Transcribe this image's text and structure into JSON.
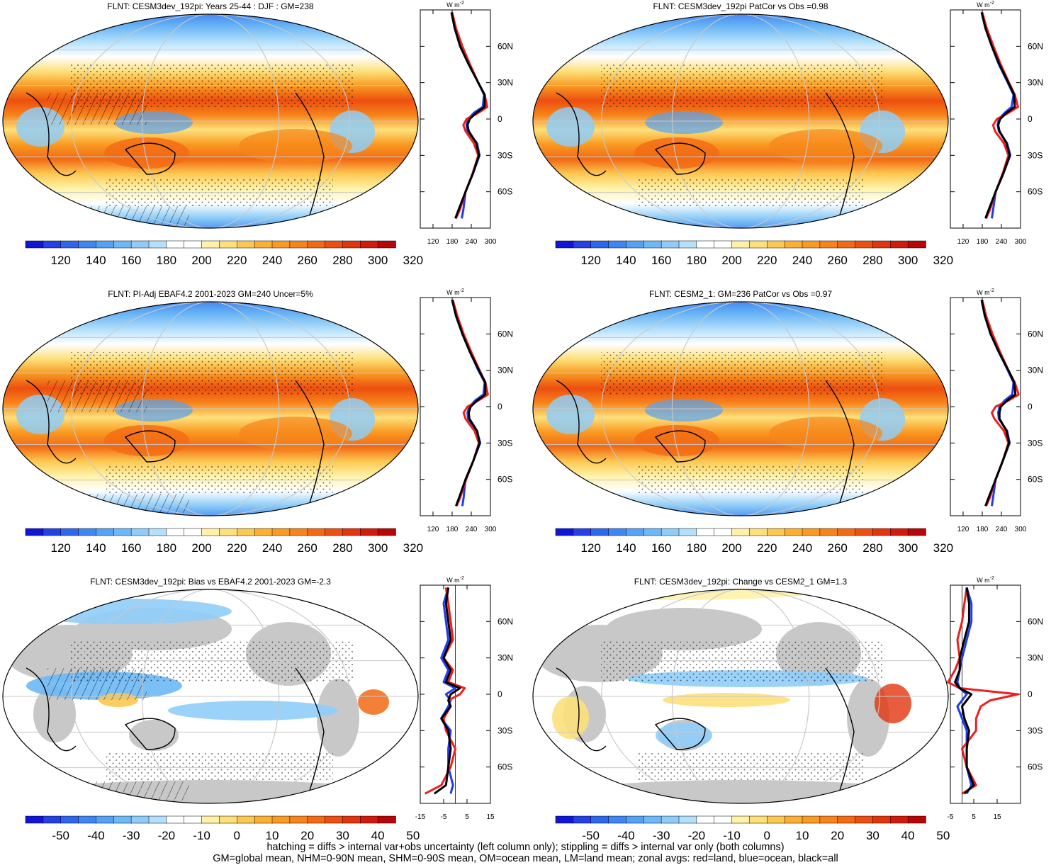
{
  "colors": {
    "ocean_blue": "#1f3cf0",
    "land_red": "#f01e1e",
    "all_black": "#000000",
    "map_gray": "#c8c8c8",
    "palette_abs": [
      "#1016d8",
      "#2441e6",
      "#2f66ee",
      "#3e86f2",
      "#55a1f4",
      "#6db8f6",
      "#8fcdf8",
      "#b4e0fb",
      "#ffffff",
      "#ffffff",
      "#fff2a8",
      "#fde07a",
      "#fcc851",
      "#fbb033",
      "#f99a22",
      "#f7841a",
      "#f26a14",
      "#ec4f10",
      "#e2340d",
      "#d21a0a",
      "#b80606"
    ],
    "palette_diff": [
      "#1016d8",
      "#2441e6",
      "#2f66ee",
      "#3e86f2",
      "#55a1f4",
      "#6db8f6",
      "#8fcdf8",
      "#b4e0fb",
      "#ffffff",
      "#ffffff",
      "#fff2a8",
      "#fde07a",
      "#fcc851",
      "#fbb033",
      "#f99a22",
      "#f7841a",
      "#f26a14",
      "#ec4f10",
      "#e2340d",
      "#d21a0a",
      "#b80606"
    ]
  },
  "panels": [
    {
      "title": "FLNT: CESM3dev_192pi: Years 25-44 : DJF : GM=238",
      "colorbar_labels": [
        "120",
        "140",
        "160",
        "180",
        "200",
        "220",
        "240",
        "260",
        "280",
        "300",
        "320"
      ],
      "field": "abs",
      "hatching": true
    },
    {
      "title": "FLNT: CESM3dev_192pi PatCor vs Obs =0.98",
      "colorbar_labels": [
        "120",
        "140",
        "160",
        "180",
        "200",
        "220",
        "240",
        "260",
        "280",
        "300",
        "320"
      ],
      "field": "abs",
      "hatching": false
    },
    {
      "title": "FLNT: PI-Adj EBAF4.2 2001-2023 GM=240 Uncer=5%",
      "colorbar_labels": [
        "120",
        "140",
        "160",
        "180",
        "200",
        "220",
        "240",
        "260",
        "280",
        "300",
        "320"
      ],
      "field": "abs",
      "hatching": true
    },
    {
      "title": "FLNT: CESM2_1: GM=236 PatCor vs Obs =0.97",
      "colorbar_labels": [
        "120",
        "140",
        "160",
        "180",
        "200",
        "220",
        "240",
        "260",
        "280",
        "300",
        "320"
      ],
      "field": "abs",
      "hatching": false
    },
    {
      "title": "FLNT: CESM3dev_192pi: Bias vs EBAF4.2 2001-2023 GM=-2.3",
      "colorbar_labels": [
        "-50",
        "-40",
        "-30",
        "-20",
        "-10",
        "0",
        "10",
        "20",
        "30",
        "40",
        "50"
      ],
      "field": "diff",
      "hatching": true
    },
    {
      "title": "FLNT: CESM3dev_192pi: Change vs CESM2_1 GM=1.3",
      "colorbar_labels": [
        "-50",
        "-40",
        "-30",
        "-20",
        "-10",
        "0",
        "10",
        "20",
        "30",
        "40",
        "50"
      ],
      "field": "diff",
      "hatching": false
    }
  ],
  "chart_data": [
    {
      "type": "line",
      "panel": "zonal-mean-1",
      "unit_label": "W m",
      "unit_exp": "-2",
      "xlim": [
        80,
        300
      ],
      "xticks": [
        "120",
        "180",
        "240",
        "300"
      ],
      "ylim": [
        -90,
        90
      ],
      "yticks": [
        "60N",
        "30N",
        "0",
        "30S",
        "60S"
      ],
      "lat": [
        88,
        75,
        60,
        45,
        30,
        20,
        10,
        5,
        0,
        -5,
        -10,
        -20,
        -30,
        -45,
        -60,
        -75,
        -82
      ],
      "series": [
        {
          "values": [
            178,
            188,
            205,
            232,
            262,
            280,
            276,
            248,
            230,
            225,
            228,
            258,
            266,
            245,
            222,
            215,
            210
          ]
        },
        {
          "values": [
            180,
            192,
            212,
            236,
            262,
            282,
            290,
            262,
            225,
            215,
            222,
            248,
            262,
            244,
            222,
            204,
            192
          ]
        },
        {
          "values": [
            178,
            188,
            205,
            232,
            262,
            282,
            282,
            255,
            235,
            228,
            232,
            256,
            264,
            245,
            222,
            200,
            190
          ]
        }
      ]
    },
    {
      "type": "line",
      "panel": "zonal-mean-2",
      "unit_label": "W m",
      "unit_exp": "-2",
      "xlim": [
        80,
        300
      ],
      "xticks": [
        "120",
        "180",
        "240",
        "300"
      ],
      "ylim": [
        -90,
        90
      ],
      "yticks": [
        "60N",
        "30N",
        "0",
        "30S",
        "60S"
      ],
      "lat": [
        88,
        75,
        60,
        45,
        30,
        20,
        10,
        5,
        0,
        -5,
        -10,
        -20,
        -30,
        -45,
        -60,
        -75,
        -82
      ],
      "series": [
        {
          "values": [
            178,
            190,
            210,
            232,
            260,
            278,
            272,
            250,
            232,
            228,
            232,
            258,
            268,
            246,
            222,
            214,
            210
          ]
        },
        {
          "values": [
            180,
            194,
            215,
            238,
            264,
            282,
            292,
            262,
            226,
            214,
            220,
            248,
            262,
            244,
            222,
            204,
            192
          ]
        },
        {
          "values": [
            178,
            190,
            210,
            234,
            262,
            280,
            282,
            256,
            236,
            230,
            234,
            256,
            266,
            246,
            222,
            200,
            190
          ]
        }
      ]
    },
    {
      "type": "line",
      "panel": "zonal-mean-3",
      "unit_label": "W m",
      "unit_exp": "-2",
      "xlim": [
        80,
        300
      ],
      "xticks": [
        "120",
        "180",
        "240",
        "300"
      ],
      "ylim": [
        -90,
        90
      ],
      "yticks": [
        "60N",
        "30N",
        "0",
        "30S",
        "60S"
      ],
      "lat": [
        88,
        75,
        60,
        45,
        30,
        20,
        10,
        5,
        0,
        -5,
        -10,
        -20,
        -30,
        -45,
        -60,
        -75,
        -82
      ],
      "series": [
        {
          "values": [
            180,
            192,
            212,
            236,
            262,
            282,
            278,
            252,
            234,
            228,
            230,
            258,
            268,
            246,
            222,
            216,
            212
          ]
        },
        {
          "values": [
            182,
            196,
            216,
            240,
            266,
            284,
            292,
            262,
            228,
            216,
            222,
            250,
            264,
            246,
            224,
            205,
            194
          ]
        },
        {
          "values": [
            180,
            192,
            212,
            236,
            264,
            284,
            284,
            258,
            238,
            232,
            234,
            258,
            266,
            246,
            222,
            202,
            192
          ]
        }
      ]
    },
    {
      "type": "line",
      "panel": "zonal-mean-4",
      "unit_label": "W m",
      "unit_exp": "-2",
      "xlim": [
        80,
        300
      ],
      "xticks": [
        "120",
        "180",
        "240",
        "300"
      ],
      "ylim": [
        -90,
        90
      ],
      "yticks": [
        "60N",
        "30N",
        "0",
        "30S",
        "60S"
      ],
      "lat": [
        88,
        75,
        60,
        45,
        30,
        20,
        10,
        5,
        0,
        -5,
        -10,
        -20,
        -30,
        -45,
        -60,
        -75,
        -82
      ],
      "series": [
        {
          "values": [
            178,
            188,
            206,
            232,
            260,
            278,
            274,
            250,
            234,
            230,
            232,
            258,
            266,
            244,
            222,
            214,
            210
          ]
        },
        {
          "values": [
            180,
            192,
            212,
            236,
            262,
            282,
            294,
            262,
            222,
            210,
            218,
            248,
            262,
            244,
            222,
            204,
            192
          ]
        },
        {
          "values": [
            178,
            188,
            206,
            232,
            262,
            280,
            284,
            258,
            238,
            234,
            234,
            256,
            264,
            244,
            222,
            200,
            190
          ]
        }
      ]
    },
    {
      "type": "line",
      "panel": "zonal-mean-5",
      "unit_label": "W m",
      "unit_exp": "-2",
      "xlim": [
        -15,
        15
      ],
      "xticks": [
        "-15",
        "-5",
        "5",
        "15"
      ],
      "ylim": [
        -90,
        90
      ],
      "yticks": [
        "60N",
        "30N",
        "0",
        "30S",
        "60S"
      ],
      "lat": [
        88,
        75,
        60,
        45,
        30,
        20,
        10,
        5,
        0,
        -5,
        -10,
        -20,
        -30,
        -45,
        -60,
        -75,
        -82
      ],
      "series": [
        {
          "values": [
            -3,
            -5,
            -4,
            -3,
            -6,
            -3,
            -5,
            0,
            -4,
            -2,
            -3,
            -6,
            -2,
            -3,
            -3,
            -1,
            -2
          ]
        },
        {
          "values": [
            -4,
            -3,
            -2,
            -1,
            -5,
            -1,
            -3,
            4,
            2,
            -3,
            -2,
            -5,
            -4,
            0,
            -2,
            -6,
            -13
          ]
        },
        {
          "values": [
            -3,
            -4,
            -3,
            -2,
            -5,
            -2,
            -4,
            2,
            -2,
            -3,
            -2,
            -6,
            -3,
            -2,
            -3,
            -4,
            -9
          ]
        }
      ]
    },
    {
      "type": "line",
      "panel": "zonal-mean-6",
      "unit_label": "W m",
      "unit_exp": "-2",
      "xlim": [
        -5,
        25
      ],
      "xticks": [
        "-5",
        "5",
        "15"
      ],
      "ylim": [
        -90,
        90
      ],
      "yticks": [
        "60N",
        "30N",
        "0",
        "30S",
        "60S"
      ],
      "lat": [
        88,
        75,
        60,
        45,
        30,
        20,
        10,
        5,
        0,
        -5,
        -10,
        -20,
        -30,
        -45,
        -60,
        -75,
        -82
      ],
      "series": [
        {
          "values": [
            2,
            4,
            4,
            2,
            0,
            -1,
            -2,
            -1,
            2,
            0,
            -2,
            0,
            2,
            2,
            2,
            4,
            2
          ]
        },
        {
          "values": [
            2,
            1,
            0,
            -2,
            -1,
            -3,
            -6,
            -1,
            24,
            12,
            8,
            6,
            6,
            0,
            2,
            6,
            0
          ]
        },
        {
          "values": [
            2,
            3,
            3,
            1,
            -1,
            -1,
            -3,
            -1,
            4,
            2,
            0,
            1,
            3,
            2,
            2,
            5,
            1
          ]
        }
      ]
    }
  ],
  "footer": {
    "line1": "hatching = diffs > internal var+obs uncertainty (left column only); stippling = diffs > internal var only (both columns)",
    "line2": "GM=global mean, NHM=0-90N mean, SHM=0-90S mean, OM=ocean mean, LM=land mean; zonal avgs: red=land, blue=ocean, black=all"
  }
}
